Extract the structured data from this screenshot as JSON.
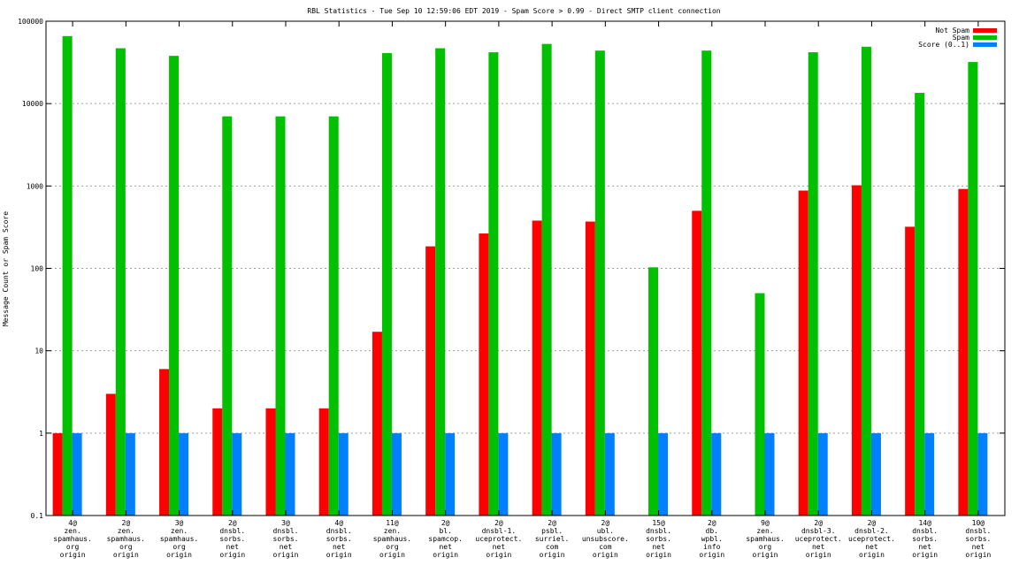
{
  "chart_data": {
    "type": "bar",
    "title": "RBL Statistics - Tue Sep 10 12:59:06 EDT 2019 - Spam Score > 0.99 - Direct SMTP client connection",
    "ylabel": "Message Count or Spam Score",
    "xlabel": "",
    "yscale": "log",
    "ylim": [
      0.1,
      100000
    ],
    "yticks": [
      "0.1",
      "1",
      "10",
      "100",
      "1000",
      "10000",
      "100000"
    ],
    "grid": true,
    "legend_position": "top-right",
    "categories": [
      [
        "4@",
        "zen.",
        "spamhaus.",
        "org",
        "origin"
      ],
      [
        "2@",
        "zen.",
        "spamhaus.",
        "org",
        "origin"
      ],
      [
        "3@",
        "zen.",
        "spamhaus.",
        "org",
        "origin"
      ],
      [
        "2@",
        "dnsbl.",
        "sorbs.",
        "net",
        "origin"
      ],
      [
        "3@",
        "dnsbl.",
        "sorbs.",
        "net",
        "origin"
      ],
      [
        "4@",
        "dnsbl.",
        "sorbs.",
        "net",
        "origin"
      ],
      [
        "11@",
        "zen.",
        "spamhaus.",
        "org",
        "origin"
      ],
      [
        "2@",
        "bl.",
        "spamcop.",
        "net",
        "origin"
      ],
      [
        "2@",
        "dnsbl-1.",
        "uceprotect.",
        "net",
        "origin"
      ],
      [
        "2@",
        "psbl.",
        "surriel.",
        "com",
        "origin"
      ],
      [
        "2@",
        "ubl.",
        "unsubscore.",
        "com",
        "origin"
      ],
      [
        "15@",
        "dnsbl.",
        "sorbs.",
        "net",
        "origin"
      ],
      [
        "2@",
        "db.",
        "wpbl.",
        "info",
        "origin"
      ],
      [
        "9@",
        "zen.",
        "spamhaus.",
        "org",
        "origin"
      ],
      [
        "2@",
        "dnsbl-3.",
        "uceprotect.",
        "net",
        "origin"
      ],
      [
        "2@",
        "dnsbl-2.",
        "uceprotect.",
        "net",
        "origin"
      ],
      [
        "14@",
        "dnsbl.",
        "sorbs.",
        "net",
        "origin"
      ],
      [
        "10@",
        "dnsbl.",
        "sorbs.",
        "net",
        "origin"
      ]
    ],
    "series": [
      {
        "name": "Not Spam",
        "color": "#ff0000",
        "values": [
          1,
          3,
          6,
          2,
          2,
          2,
          17,
          185,
          265,
          380,
          370,
          null,
          500,
          null,
          880,
          1020,
          320,
          920
        ]
      },
      {
        "name": "Spam",
        "color": "#00c000",
        "values": [
          66000,
          47000,
          38000,
          7000,
          7000,
          7000,
          41000,
          47000,
          42000,
          53000,
          44000,
          103,
          44000,
          50,
          42000,
          49000,
          13500,
          32000
        ]
      },
      {
        "name": "Score (0..1)",
        "color": "#0080ff",
        "values": [
          1,
          1,
          1,
          1,
          1,
          1,
          1,
          1,
          1,
          1,
          1,
          1,
          1,
          1,
          1,
          1,
          1,
          1
        ]
      }
    ]
  }
}
